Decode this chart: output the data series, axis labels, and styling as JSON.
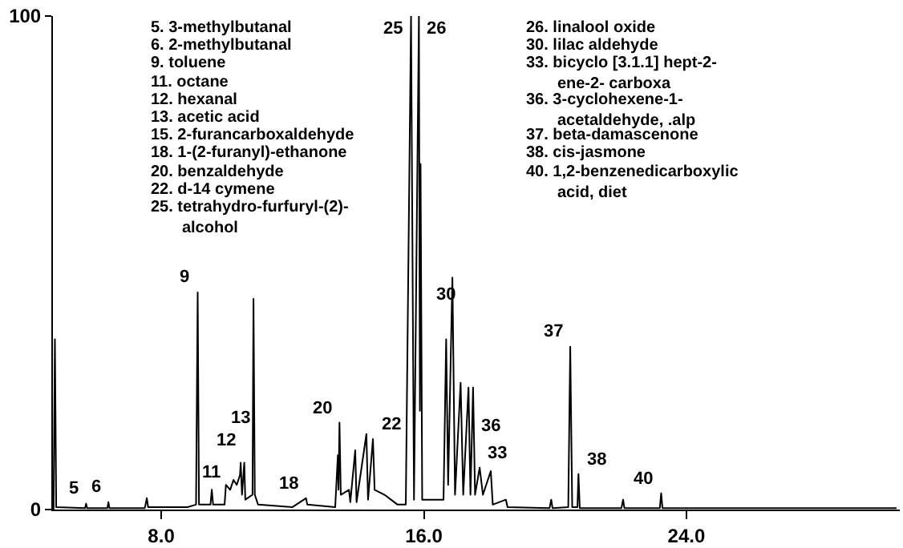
{
  "chart_data": {
    "type": "line",
    "x": [
      4.72,
      4.76,
      4.8,
      5.68,
      5.71,
      5.74,
      6.36,
      6.39,
      6.42,
      7.5,
      7.56,
      7.6,
      8.8,
      9.06,
      9.11,
      9.15,
      9.5,
      9.54,
      9.58,
      9.93,
      9.97,
      10.1,
      10.2,
      10.3,
      10.4,
      10.42,
      10.46,
      10.53,
      10.56,
      10.78,
      10.81,
      10.85,
      10.95,
      12.0,
      12.41,
      12.45,
      13.3,
      13.38,
      13.4,
      13.43,
      13.47,
      13.72,
      13.76,
      13.91,
      13.95,
      14.25,
      14.3,
      14.45,
      14.5,
      14.8,
      15.2,
      15.45,
      15.61,
      15.7,
      15.85,
      15.88,
      15.9,
      15.95,
      16.3,
      16.6,
      16.68,
      16.74,
      16.87,
      16.95,
      17.12,
      17.2,
      17.36,
      17.42,
      17.5,
      17.56,
      17.7,
      17.8,
      18.04,
      18.1,
      18.5,
      18.55,
      19.83,
      19.88,
      19.92,
      20.4,
      20.46,
      20.52,
      20.68,
      20.71,
      20.75,
      22.02,
      22.07,
      22.11,
      23.19,
      23.23,
      23.27,
      30.4
    ],
    "series": [
      {
        "color": "#000000",
        "values": [
          0,
          34.5,
          0.5,
          0.3,
          1.2,
          0.3,
          0.3,
          1.5,
          0.3,
          0.3,
          2.3,
          0.5,
          0.5,
          1,
          44,
          1,
          1,
          4,
          1,
          1,
          5,
          4,
          6,
          5,
          7,
          9.5,
          3,
          9.5,
          2,
          3,
          42.7,
          3,
          1,
          0.5,
          2.3,
          1,
          0.5,
          11,
          4,
          17.6,
          3,
          4,
          1.5,
          12,
          1.5,
          15.3,
          2,
          14.3,
          4,
          3,
          1,
          1,
          100,
          2,
          100,
          20,
          70,
          2,
          2,
          2,
          34.5,
          5,
          47,
          3,
          25.7,
          3,
          24.7,
          3,
          24.7,
          3,
          8.5,
          3,
          7.8,
          1,
          2,
          0.5,
          0.3,
          2,
          0.3,
          0.5,
          33,
          0.5,
          0.5,
          7.2,
          0.3,
          0.3,
          2,
          0.3,
          0.3,
          3.3,
          0.3,
          0.3
        ]
      }
    ],
    "xlim": [
      4.7,
      30.5
    ],
    "xticks": [
      {
        "value": 8,
        "label": "8.0"
      },
      {
        "value": 16,
        "label": "16.0"
      },
      {
        "value": 24,
        "label": "24.0"
      }
    ],
    "ylim": [
      0,
      100
    ],
    "yticks": [
      0,
      100
    ],
    "marker": "none",
    "line_style": "solid",
    "annotations": [
      {
        "text": "5",
        "x": 5.71,
        "y": 1.2
      },
      {
        "text": "6",
        "x": 6.39,
        "y": 1.5
      },
      {
        "text": "9",
        "x": 9.11,
        "y": 44
      },
      {
        "text": "11",
        "x": 9.54,
        "y": 4
      },
      {
        "text": "12",
        "x": 9.97,
        "y": 5
      },
      {
        "text": "13",
        "x": 10.42,
        "y": 9.5
      },
      {
        "text": "18",
        "x": 12.41,
        "y": 2.3
      },
      {
        "text": "20",
        "x": 13.43,
        "y": 17.6
      },
      {
        "text": "22",
        "x": 14.45,
        "y": 14.3
      },
      {
        "text": "25",
        "x": 15.61,
        "y": 100
      },
      {
        "text": "26",
        "x": 15.85,
        "y": 100
      },
      {
        "text": "30",
        "x": 16.68,
        "y": 34.5
      },
      {
        "text": "33",
        "x": 17.7,
        "y": 8.5
      },
      {
        "text": "36",
        "x": 18.04,
        "y": 7.8
      },
      {
        "text": "37",
        "x": 20.46,
        "y": 33
      },
      {
        "text": "38",
        "x": 20.71,
        "y": 7.2
      },
      {
        "text": "40",
        "x": 23.23,
        "y": 3.3
      },
      "5. 3-methylbutanal",
      "6. 2-methylbutanal",
      "9. toluene",
      "11. octane",
      "12. hexanal",
      "13. acetic acid",
      "15. 2-furancarboxaldehyde",
      "18. 1-(2-furanyl)-ethanone",
      "20. benzaldehyde",
      "22. d-14 cymene",
      "25. tetrahydro-furfuryl-(2)-\nalcohol",
      "26. linalool oxide",
      "30. lilac aldehyde",
      "33. bicyclo [3.1.1] hept-2-\nene-2- carboxa",
      "36. 3-cyclohexene-1-\nacetaldehyde, .alp",
      "37. beta-damascenone",
      "38. cis-jasmone",
      "40. 1,2-benzenedicarboxylic\nacid, diet"
    ]
  }
}
